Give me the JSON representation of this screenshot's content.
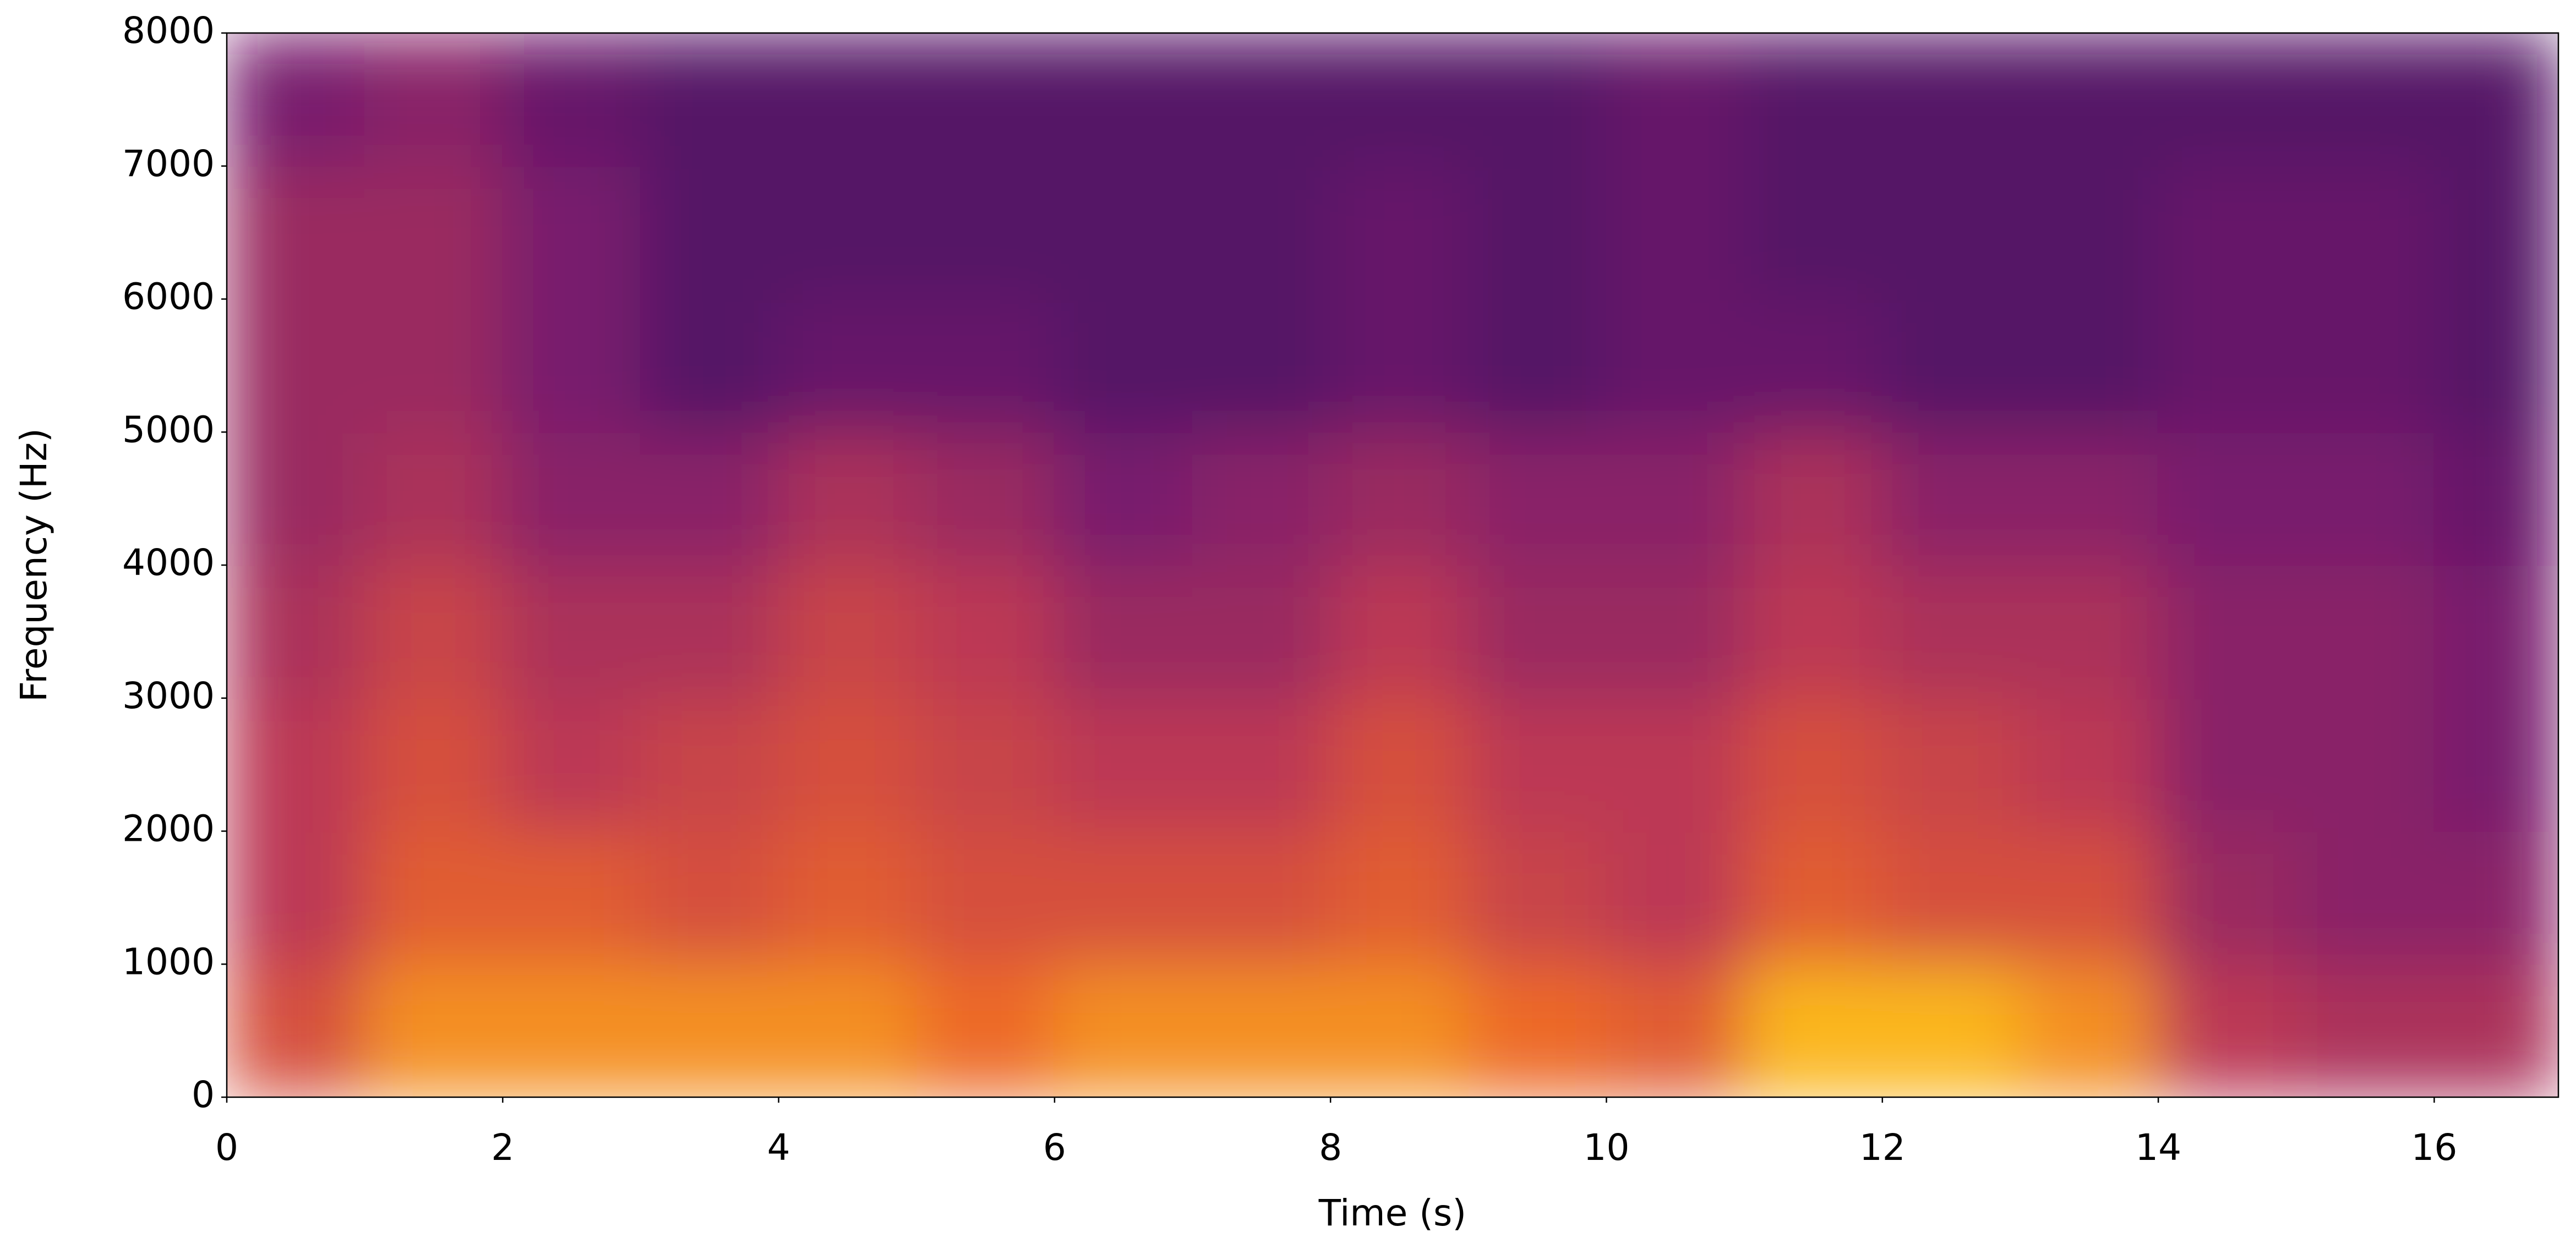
{
  "chart_data": {
    "type": "spectrogram",
    "xlabel": "Time (s)",
    "ylabel": "Frequency (Hz)",
    "colormap": "inferno",
    "x": [
      0,
      1,
      2,
      3,
      4,
      5,
      6,
      7,
      8,
      9,
      10,
      11,
      12,
      13,
      14,
      15,
      16,
      16.9
    ],
    "y": [
      0,
      1000,
      2000,
      3000,
      4000,
      5000,
      6000,
      7000,
      8000
    ],
    "values": [
      [
        0.7,
        0.85,
        0.85,
        0.85,
        0.85,
        0.8,
        0.85,
        0.85,
        0.85,
        0.8,
        0.75,
        0.9,
        0.9,
        0.85,
        0.6,
        0.55,
        0.55
      ],
      [
        0.6,
        0.75,
        0.75,
        0.7,
        0.75,
        0.7,
        0.7,
        0.7,
        0.75,
        0.65,
        0.6,
        0.75,
        0.7,
        0.7,
        0.5,
        0.45,
        0.45
      ],
      [
        0.6,
        0.7,
        0.6,
        0.65,
        0.7,
        0.65,
        0.6,
        0.6,
        0.7,
        0.6,
        0.6,
        0.7,
        0.65,
        0.6,
        0.45,
        0.45,
        0.4
      ],
      [
        0.55,
        0.65,
        0.55,
        0.55,
        0.65,
        0.6,
        0.5,
        0.5,
        0.6,
        0.5,
        0.5,
        0.6,
        0.55,
        0.55,
        0.45,
        0.45,
        0.4
      ],
      [
        0.5,
        0.55,
        0.45,
        0.45,
        0.55,
        0.5,
        0.4,
        0.45,
        0.5,
        0.45,
        0.45,
        0.55,
        0.45,
        0.45,
        0.4,
        0.4,
        0.35
      ],
      [
        0.5,
        0.5,
        0.4,
        0.3,
        0.35,
        0.35,
        0.3,
        0.3,
        0.35,
        0.3,
        0.35,
        0.35,
        0.3,
        0.3,
        0.35,
        0.35,
        0.3
      ],
      [
        0.5,
        0.5,
        0.4,
        0.3,
        0.3,
        0.3,
        0.3,
        0.3,
        0.35,
        0.3,
        0.35,
        0.3,
        0.3,
        0.3,
        0.35,
        0.35,
        0.3
      ],
      [
        0.4,
        0.45,
        0.35,
        0.3,
        0.3,
        0.3,
        0.3,
        0.3,
        0.3,
        0.3,
        0.35,
        0.3,
        0.3,
        0.3,
        0.3,
        0.3,
        0.3
      ]
    ],
    "xlim": [
      0,
      16.9
    ],
    "ylim": [
      0,
      8000
    ],
    "xticks": [
      0,
      2,
      4,
      6,
      8,
      10,
      12,
      14,
      16
    ],
    "yticks": [
      0,
      1000,
      2000,
      3000,
      4000,
      5000,
      6000,
      7000,
      8000
    ]
  }
}
